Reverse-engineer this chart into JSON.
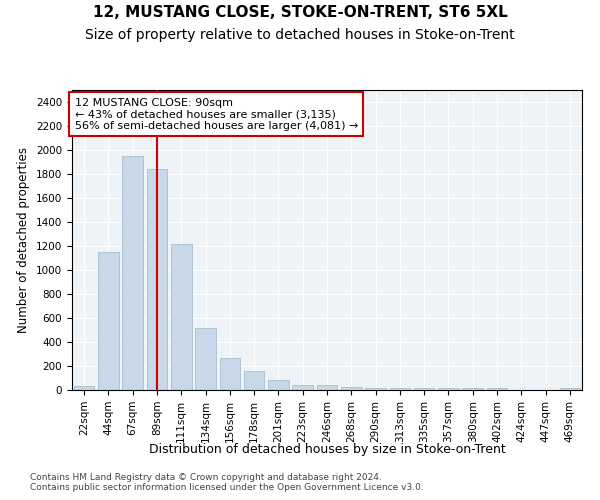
{
  "title": "12, MUSTANG CLOSE, STOKE-ON-TRENT, ST6 5XL",
  "subtitle": "Size of property relative to detached houses in Stoke-on-Trent",
  "xlabel": "Distribution of detached houses by size in Stoke-on-Trent",
  "ylabel": "Number of detached properties",
  "categories": [
    "22sqm",
    "44sqm",
    "67sqm",
    "89sqm",
    "111sqm",
    "134sqm",
    "156sqm",
    "178sqm",
    "201sqm",
    "223sqm",
    "246sqm",
    "268sqm",
    "290sqm",
    "313sqm",
    "335sqm",
    "357sqm",
    "380sqm",
    "402sqm",
    "424sqm",
    "447sqm",
    "469sqm"
  ],
  "values": [
    30,
    1150,
    1950,
    1840,
    1220,
    520,
    265,
    155,
    80,
    45,
    40,
    28,
    18,
    18,
    18,
    18,
    18,
    18,
    0,
    0,
    18
  ],
  "bar_color": "#c8d8e8",
  "bar_edge_color": "#a8bece",
  "vline_color": "#cc0000",
  "annotation_text": "12 MUSTANG CLOSE: 90sqm\n← 43% of detached houses are smaller (3,135)\n56% of semi-detached houses are larger (4,081) →",
  "annotation_box_color": "#ffffff",
  "annotation_box_edge": "#cc0000",
  "ylim": [
    0,
    2500
  ],
  "yticks": [
    0,
    200,
    400,
    600,
    800,
    1000,
    1200,
    1400,
    1600,
    1800,
    2000,
    2200,
    2400
  ],
  "background_color": "#eef3f8",
  "footer_text": "Contains HM Land Registry data © Crown copyright and database right 2024.\nContains public sector information licensed under the Open Government Licence v3.0.",
  "title_fontsize": 11,
  "subtitle_fontsize": 10,
  "xlabel_fontsize": 9,
  "ylabel_fontsize": 8.5,
  "tick_fontsize": 7.5,
  "annotation_fontsize": 8,
  "footer_fontsize": 6.5
}
